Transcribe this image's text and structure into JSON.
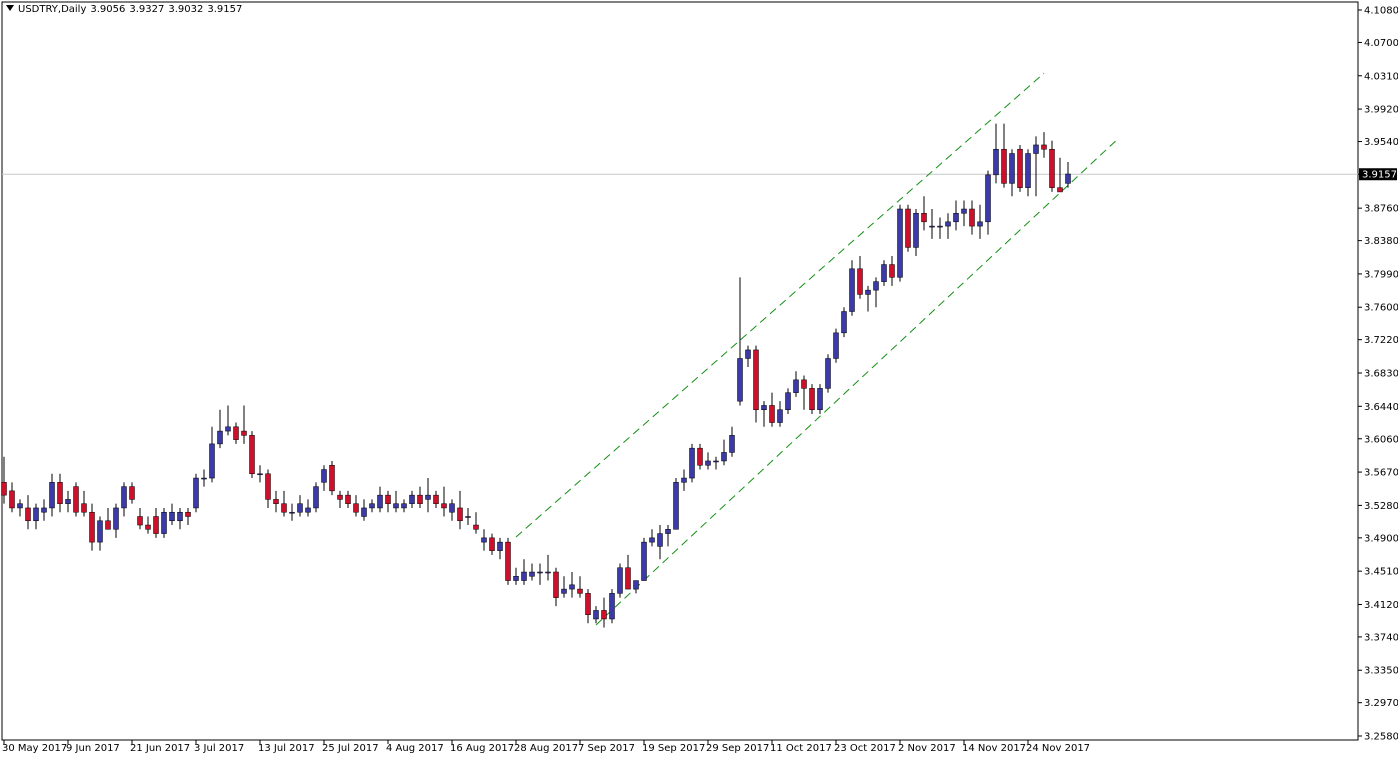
{
  "header": {
    "symbol": "USDTRY,Daily",
    "open": "3.9056",
    "high": "3.9327",
    "low": "3.9032",
    "close": "3.9157"
  },
  "colors": {
    "bull": "#3a3aa8",
    "bear": "#d0102a",
    "channel": "#139013",
    "grid_line": "#c8c8c8",
    "price_tag_bg": "#000000"
  },
  "chart_data": {
    "type": "candlestick",
    "symbol": "USDTRY",
    "timeframe": "Daily",
    "ylim": [
      3.258,
      4.108
    ],
    "y_ticks": [
      "4.1080",
      "4.0700",
      "4.0310",
      "3.9920",
      "3.9540",
      "3.9157",
      "3.8760",
      "3.8380",
      "3.7990",
      "3.7600",
      "3.7220",
      "3.6830",
      "3.6440",
      "3.6060",
      "3.5670",
      "3.5280",
      "3.4900",
      "3.4510",
      "3.4120",
      "3.3740",
      "3.3350",
      "3.2970",
      "3.2580"
    ],
    "current_price": "3.9157",
    "x_ticks": [
      {
        "label": "30 May 2017",
        "index": 0
      },
      {
        "label": "9 Jun 2017",
        "index": 8
      },
      {
        "label": "21 Jun 2017",
        "index": 16
      },
      {
        "label": "3 Jul 2017",
        "index": 24
      },
      {
        "label": "13 Jul 2017",
        "index": 32
      },
      {
        "label": "25 Jul 2017",
        "index": 40
      },
      {
        "label": "4 Aug 2017",
        "index": 48
      },
      {
        "label": "16 Aug 2017",
        "index": 56
      },
      {
        "label": "28 Aug 2017",
        "index": 64
      },
      {
        "label": "7 Sep 2017",
        "index": 72
      },
      {
        "label": "19 Sep 2017",
        "index": 80
      },
      {
        "label": "29 Sep 2017",
        "index": 88
      },
      {
        "label": "11 Oct 2017",
        "index": 96
      },
      {
        "label": "23 Oct 2017",
        "index": 104
      },
      {
        "label": "2 Nov 2017",
        "index": 112
      },
      {
        "label": "14 Nov 2017",
        "index": 120
      },
      {
        "label": "24 Nov 2017",
        "index": 128
      }
    ],
    "ohlc": [
      [
        3.555,
        3.585,
        3.53,
        3.54
      ],
      [
        3.545,
        3.555,
        3.52,
        3.525
      ],
      [
        3.525,
        3.535,
        3.515,
        3.53
      ],
      [
        3.525,
        3.54,
        3.5,
        3.51
      ],
      [
        3.51,
        3.53,
        3.5,
        3.525
      ],
      [
        3.52,
        3.535,
        3.51,
        3.525
      ],
      [
        3.525,
        3.565,
        3.515,
        3.555
      ],
      [
        3.555,
        3.565,
        3.52,
        3.53
      ],
      [
        3.53,
        3.545,
        3.52,
        3.535
      ],
      [
        3.55,
        3.555,
        3.515,
        3.52
      ],
      [
        3.53,
        3.545,
        3.515,
        3.52
      ],
      [
        3.52,
        3.53,
        3.475,
        3.485
      ],
      [
        3.485,
        3.515,
        3.475,
        3.51
      ],
      [
        3.51,
        3.525,
        3.5,
        3.5
      ],
      [
        3.5,
        3.53,
        3.49,
        3.525
      ],
      [
        3.525,
        3.555,
        3.515,
        3.55
      ],
      [
        3.55,
        3.555,
        3.53,
        3.535
      ],
      [
        3.515,
        3.525,
        3.5,
        3.505
      ],
      [
        3.505,
        3.515,
        3.495,
        3.5
      ],
      [
        3.515,
        3.525,
        3.49,
        3.495
      ],
      [
        3.495,
        3.525,
        3.49,
        3.52
      ],
      [
        3.51,
        3.53,
        3.505,
        3.52
      ],
      [
        3.51,
        3.525,
        3.5,
        3.52
      ],
      [
        3.52,
        3.525,
        3.505,
        3.515
      ],
      [
        3.525,
        3.565,
        3.52,
        3.56
      ],
      [
        3.56,
        3.57,
        3.55,
        3.56
      ],
      [
        3.56,
        3.62,
        3.555,
        3.6
      ],
      [
        3.6,
        3.64,
        3.595,
        3.615
      ],
      [
        3.615,
        3.645,
        3.61,
        3.62
      ],
      [
        3.62,
        3.625,
        3.6,
        3.605
      ],
      [
        3.615,
        3.645,
        3.6,
        3.61
      ],
      [
        3.61,
        3.615,
        3.56,
        3.565
      ],
      [
        3.565,
        3.575,
        3.555,
        3.565
      ],
      [
        3.565,
        3.57,
        3.525,
        3.535
      ],
      [
        3.535,
        3.545,
        3.52,
        3.53
      ],
      [
        3.53,
        3.545,
        3.515,
        3.52
      ],
      [
        3.52,
        3.53,
        3.51,
        3.52
      ],
      [
        3.52,
        3.54,
        3.515,
        3.53
      ],
      [
        3.52,
        3.535,
        3.515,
        3.525
      ],
      [
        3.525,
        3.555,
        3.52,
        3.55
      ],
      [
        3.555,
        3.575,
        3.545,
        3.57
      ],
      [
        3.575,
        3.58,
        3.54,
        3.545
      ],
      [
        3.54,
        3.545,
        3.525,
        3.535
      ],
      [
        3.54,
        3.545,
        3.525,
        3.53
      ],
      [
        3.53,
        3.54,
        3.515,
        3.52
      ],
      [
        3.515,
        3.535,
        3.51,
        3.525
      ],
      [
        3.525,
        3.535,
        3.52,
        3.53
      ],
      [
        3.525,
        3.55,
        3.52,
        3.54
      ],
      [
        3.54,
        3.545,
        3.52,
        3.53
      ],
      [
        3.525,
        3.545,
        3.52,
        3.53
      ],
      [
        3.525,
        3.535,
        3.52,
        3.53
      ],
      [
        3.53,
        3.545,
        3.525,
        3.54
      ],
      [
        3.54,
        3.55,
        3.525,
        3.53
      ],
      [
        3.535,
        3.56,
        3.52,
        3.54
      ],
      [
        3.54,
        3.545,
        3.525,
        3.53
      ],
      [
        3.53,
        3.55,
        3.515,
        3.525
      ],
      [
        3.52,
        3.535,
        3.51,
        3.53
      ],
      [
        3.525,
        3.545,
        3.5,
        3.51
      ],
      [
        3.515,
        3.525,
        3.505,
        3.515
      ],
      [
        3.505,
        3.52,
        3.495,
        3.5
      ],
      [
        3.485,
        3.5,
        3.475,
        3.49
      ],
      [
        3.49,
        3.495,
        3.47,
        3.475
      ],
      [
        3.475,
        3.49,
        3.465,
        3.485
      ],
      [
        3.485,
        3.49,
        3.435,
        3.44
      ],
      [
        3.44,
        3.455,
        3.435,
        3.445
      ],
      [
        3.44,
        3.465,
        3.435,
        3.45
      ],
      [
        3.445,
        3.46,
        3.44,
        3.45
      ],
      [
        3.45,
        3.46,
        3.435,
        3.45
      ],
      [
        3.45,
        3.47,
        3.44,
        3.45
      ],
      [
        3.45,
        3.455,
        3.41,
        3.42
      ],
      [
        3.425,
        3.445,
        3.42,
        3.43
      ],
      [
        3.43,
        3.45,
        3.42,
        3.435
      ],
      [
        3.43,
        3.445,
        3.42,
        3.425
      ],
      [
        3.425,
        3.43,
        3.39,
        3.4
      ],
      [
        3.395,
        3.41,
        3.39,
        3.405
      ],
      [
        3.405,
        3.42,
        3.385,
        3.395
      ],
      [
        3.395,
        3.43,
        3.39,
        3.425
      ],
      [
        3.425,
        3.46,
        3.42,
        3.455
      ],
      [
        3.455,
        3.47,
        3.43,
        3.43
      ],
      [
        3.43,
        3.44,
        3.425,
        3.44
      ],
      [
        3.44,
        3.49,
        3.44,
        3.485
      ],
      [
        3.485,
        3.5,
        3.48,
        3.49
      ],
      [
        3.48,
        3.505,
        3.465,
        3.495
      ],
      [
        3.495,
        3.505,
        3.48,
        3.5
      ],
      [
        3.5,
        3.56,
        3.5,
        3.555
      ],
      [
        3.555,
        3.57,
        3.545,
        3.56
      ],
      [
        3.56,
        3.6,
        3.555,
        3.595
      ],
      [
        3.595,
        3.6,
        3.57,
        3.575
      ],
      [
        3.575,
        3.59,
        3.57,
        3.58
      ],
      [
        3.58,
        3.585,
        3.57,
        3.58
      ],
      [
        3.58,
        3.605,
        3.575,
        3.59
      ],
      [
        3.59,
        3.62,
        3.585,
        3.61
      ],
      [
        3.65,
        3.795,
        3.645,
        3.7
      ],
      [
        3.7,
        3.715,
        3.69,
        3.71
      ],
      [
        3.71,
        3.715,
        3.625,
        3.64
      ],
      [
        3.64,
        3.65,
        3.62,
        3.645
      ],
      [
        3.645,
        3.66,
        3.62,
        3.625
      ],
      [
        3.625,
        3.65,
        3.62,
        3.64
      ],
      [
        3.64,
        3.665,
        3.635,
        3.66
      ],
      [
        3.66,
        3.685,
        3.655,
        3.675
      ],
      [
        3.675,
        3.68,
        3.64,
        3.665
      ],
      [
        3.665,
        3.67,
        3.635,
        3.64
      ],
      [
        3.64,
        3.67,
        3.635,
        3.665
      ],
      [
        3.665,
        3.705,
        3.66,
        3.7
      ],
      [
        3.7,
        3.735,
        3.695,
        3.73
      ],
      [
        3.73,
        3.76,
        3.725,
        3.755
      ],
      [
        3.755,
        3.815,
        3.75,
        3.805
      ],
      [
        3.805,
        3.82,
        3.77,
        3.775
      ],
      [
        3.775,
        3.785,
        3.755,
        3.78
      ],
      [
        3.78,
        3.795,
        3.76,
        3.79
      ],
      [
        3.79,
        3.815,
        3.785,
        3.81
      ],
      [
        3.81,
        3.82,
        3.785,
        3.795
      ],
      [
        3.795,
        3.88,
        3.79,
        3.875
      ],
      [
        3.875,
        3.88,
        3.825,
        3.83
      ],
      [
        3.83,
        3.875,
        3.82,
        3.87
      ],
      [
        3.87,
        3.89,
        3.85,
        3.86
      ],
      [
        3.855,
        3.875,
        3.84,
        3.855
      ],
      [
        3.855,
        3.865,
        3.84,
        3.855
      ],
      [
        3.855,
        3.87,
        3.84,
        3.86
      ],
      [
        3.86,
        3.885,
        3.85,
        3.87
      ],
      [
        3.87,
        3.885,
        3.855,
        3.875
      ],
      [
        3.875,
        3.885,
        3.845,
        3.855
      ],
      [
        3.855,
        3.88,
        3.84,
        3.86
      ],
      [
        3.86,
        3.92,
        3.845,
        3.915
      ],
      [
        3.915,
        3.975,
        3.905,
        3.945
      ],
      [
        3.945,
        3.975,
        3.9,
        3.905
      ],
      [
        3.905,
        3.945,
        3.89,
        3.94
      ],
      [
        3.945,
        3.95,
        3.895,
        3.9
      ],
      [
        3.9,
        3.945,
        3.89,
        3.94
      ],
      [
        3.94,
        3.96,
        3.89,
        3.95
      ],
      [
        3.95,
        3.965,
        3.935,
        3.945
      ],
      [
        3.945,
        3.955,
        3.895,
        3.9
      ],
      [
        3.9,
        3.935,
        3.895,
        3.895
      ],
      [
        3.905,
        3.93,
        3.9,
        3.916
      ]
    ],
    "trendlines": [
      {
        "style": "dashed",
        "from": {
          "index": 64,
          "price": 3.491
        },
        "to": {
          "index": 130,
          "price": 4.034
        }
      },
      {
        "style": "dashed",
        "from": {
          "index": 74,
          "price": 3.388
        },
        "to": {
          "index": 139,
          "price": 3.955
        }
      }
    ]
  }
}
